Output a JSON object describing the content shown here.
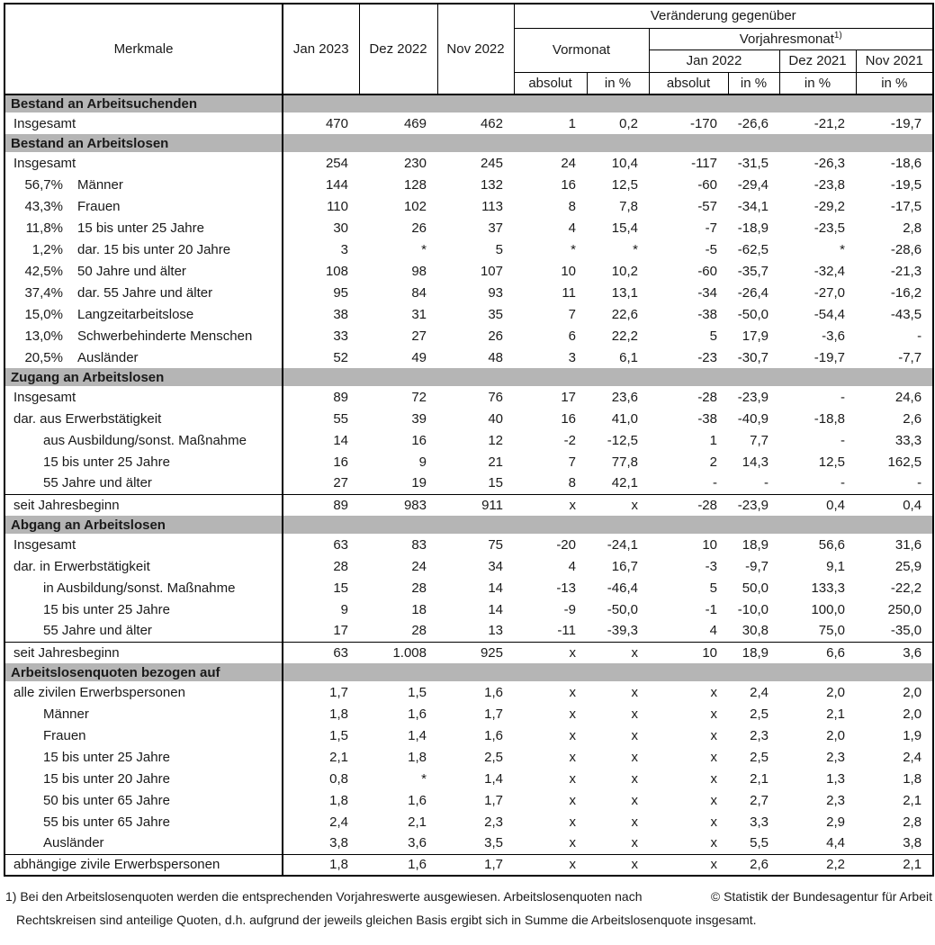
{
  "header": {
    "merkmale": "Merkmale",
    "months": [
      "Jan 2023",
      "Dez 2022",
      "Nov 2022"
    ],
    "change_label": "Veränderung gegenüber",
    "vormonat": "Vormonat",
    "vorjahresmonat": "Vorjahresmonat",
    "note_ref": "1)",
    "vj_months": [
      "Jan 2022",
      "Dez 2021",
      "Nov 2021"
    ],
    "absolut": "absolut",
    "in_pct": "in %"
  },
  "columns": [
    "jan-2023",
    "dez-2022",
    "nov-2022",
    "vormonat-absolut",
    "vormonat-in-pct",
    "jan-2022-absolut",
    "jan-2022-in-pct",
    "dez-2021-in-pct",
    "nov-2021-in-pct"
  ],
  "sections": [
    {
      "title": "Bestand an Arbeitsuchenden",
      "rows": [
        {
          "pct": "",
          "label": "Insgesamt",
          "level": 0,
          "sep": false,
          "values": [
            "470",
            "469",
            "462",
            "1",
            "0,2",
            "-170",
            "-26,6",
            "-21,2",
            "-19,7"
          ]
        }
      ]
    },
    {
      "title": "Bestand an Arbeitslosen",
      "rows": [
        {
          "pct": "",
          "label": "Insgesamt",
          "level": 0,
          "sep": false,
          "values": [
            "254",
            "230",
            "245",
            "24",
            "10,4",
            "-117",
            "-31,5",
            "-26,3",
            "-18,6"
          ]
        },
        {
          "pct": "56,7%",
          "label": "Männer",
          "level": 0,
          "sep": false,
          "values": [
            "144",
            "128",
            "132",
            "16",
            "12,5",
            "-60",
            "-29,4",
            "-23,8",
            "-19,5"
          ]
        },
        {
          "pct": "43,3%",
          "label": "Frauen",
          "level": 0,
          "sep": false,
          "values": [
            "110",
            "102",
            "113",
            "8",
            "7,8",
            "-57",
            "-34,1",
            "-29,2",
            "-17,5"
          ]
        },
        {
          "pct": "11,8%",
          "label": "15 bis unter 25 Jahre",
          "level": 0,
          "sep": false,
          "values": [
            "30",
            "26",
            "37",
            "4",
            "15,4",
            "-7",
            "-18,9",
            "-23,5",
            "2,8"
          ]
        },
        {
          "pct": "1,2%",
          "label": "dar. 15 bis unter 20 Jahre",
          "level": 0,
          "sep": false,
          "values": [
            "3",
            "*",
            "5",
            "*",
            "*",
            "-5",
            "-62,5",
            "*",
            "-28,6"
          ]
        },
        {
          "pct": "42,5%",
          "label": "50 Jahre und älter",
          "level": 0,
          "sep": false,
          "values": [
            "108",
            "98",
            "107",
            "10",
            "10,2",
            "-60",
            "-35,7",
            "-32,4",
            "-21,3"
          ]
        },
        {
          "pct": "37,4%",
          "label": "dar. 55 Jahre und älter",
          "level": 0,
          "sep": false,
          "values": [
            "95",
            "84",
            "93",
            "11",
            "13,1",
            "-34",
            "-26,4",
            "-27,0",
            "-16,2"
          ]
        },
        {
          "pct": "15,0%",
          "label": "Langzeitarbeitslose",
          "level": 0,
          "sep": false,
          "values": [
            "38",
            "31",
            "35",
            "7",
            "22,6",
            "-38",
            "-50,0",
            "-54,4",
            "-43,5"
          ]
        },
        {
          "pct": "13,0%",
          "label": "Schwerbehinderte Menschen",
          "level": 0,
          "sep": false,
          "values": [
            "33",
            "27",
            "26",
            "6",
            "22,2",
            "5",
            "17,9",
            "-3,6",
            "-"
          ]
        },
        {
          "pct": "20,5%",
          "label": "Ausländer",
          "level": 0,
          "sep": false,
          "values": [
            "52",
            "49",
            "48",
            "3",
            "6,1",
            "-23",
            "-30,7",
            "-19,7",
            "-7,7"
          ]
        }
      ]
    },
    {
      "title": "Zugang an Arbeitslosen",
      "rows": [
        {
          "pct": "",
          "label": "Insgesamt",
          "level": 0,
          "sep": false,
          "values": [
            "89",
            "72",
            "76",
            "17",
            "23,6",
            "-28",
            "-23,9",
            "-",
            "24,6"
          ]
        },
        {
          "pct": "",
          "label": "dar. aus Erwerbstätigkeit",
          "level": 0,
          "sep": false,
          "values": [
            "55",
            "39",
            "40",
            "16",
            "41,0",
            "-38",
            "-40,9",
            "-18,8",
            "2,6"
          ]
        },
        {
          "pct": "",
          "label": "aus Ausbildung/sonst. Maßnahme",
          "level": 1,
          "sep": false,
          "values": [
            "14",
            "16",
            "12",
            "-2",
            "-12,5",
            "1",
            "7,7",
            "-",
            "33,3"
          ]
        },
        {
          "pct": "",
          "label": "15 bis unter 25 Jahre",
          "level": 1,
          "sep": false,
          "values": [
            "16",
            "9",
            "21",
            "7",
            "77,8",
            "2",
            "14,3",
            "12,5",
            "162,5"
          ]
        },
        {
          "pct": "",
          "label": "55 Jahre und älter",
          "level": 1,
          "sep": false,
          "values": [
            "27",
            "19",
            "15",
            "8",
            "42,1",
            "-",
            "-",
            "-",
            "-"
          ]
        },
        {
          "pct": "",
          "label": "seit Jahresbeginn",
          "level": 0,
          "sep": true,
          "values": [
            "89",
            "983",
            "911",
            "x",
            "x",
            "-28",
            "-23,9",
            "0,4",
            "0,4"
          ]
        }
      ]
    },
    {
      "title": "Abgang an Arbeitslosen",
      "rows": [
        {
          "pct": "",
          "label": "Insgesamt",
          "level": 0,
          "sep": false,
          "values": [
            "63",
            "83",
            "75",
            "-20",
            "-24,1",
            "10",
            "18,9",
            "56,6",
            "31,6"
          ]
        },
        {
          "pct": "",
          "label": "dar. in Erwerbstätigkeit",
          "level": 0,
          "sep": false,
          "values": [
            "28",
            "24",
            "34",
            "4",
            "16,7",
            "-3",
            "-9,7",
            "9,1",
            "25,9"
          ]
        },
        {
          "pct": "",
          "label": "in Ausbildung/sonst. Maßnahme",
          "level": 1,
          "sep": false,
          "values": [
            "15",
            "28",
            "14",
            "-13",
            "-46,4",
            "5",
            "50,0",
            "133,3",
            "-22,2"
          ]
        },
        {
          "pct": "",
          "label": "15 bis unter 25 Jahre",
          "level": 1,
          "sep": false,
          "values": [
            "9",
            "18",
            "14",
            "-9",
            "-50,0",
            "-1",
            "-10,0",
            "100,0",
            "250,0"
          ]
        },
        {
          "pct": "",
          "label": "55 Jahre und älter",
          "level": 1,
          "sep": false,
          "values": [
            "17",
            "28",
            "13",
            "-11",
            "-39,3",
            "4",
            "30,8",
            "75,0",
            "-35,0"
          ]
        },
        {
          "pct": "",
          "label": "seit Jahresbeginn",
          "level": 0,
          "sep": true,
          "values": [
            "63",
            "1.008",
            "925",
            "x",
            "x",
            "10",
            "18,9",
            "6,6",
            "3,6"
          ]
        }
      ]
    },
    {
      "title": "Arbeitslosenquoten bezogen auf",
      "rows": [
        {
          "pct": "",
          "label": "alle zivilen Erwerbspersonen",
          "level": 0,
          "sep": false,
          "values": [
            "1,7",
            "1,5",
            "1,6",
            "x",
            "x",
            "x",
            "2,4",
            "2,0",
            "2,0"
          ]
        },
        {
          "pct": "",
          "label": "Männer",
          "level": 1,
          "sep": false,
          "values": [
            "1,8",
            "1,6",
            "1,7",
            "x",
            "x",
            "x",
            "2,5",
            "2,1",
            "2,0"
          ]
        },
        {
          "pct": "",
          "label": "Frauen",
          "level": 1,
          "sep": false,
          "values": [
            "1,5",
            "1,4",
            "1,6",
            "x",
            "x",
            "x",
            "2,3",
            "2,0",
            "1,9"
          ]
        },
        {
          "pct": "",
          "label": "15 bis unter 25 Jahre",
          "level": 1,
          "sep": false,
          "values": [
            "2,1",
            "1,8",
            "2,5",
            "x",
            "x",
            "x",
            "2,5",
            "2,3",
            "2,4"
          ]
        },
        {
          "pct": "",
          "label": "15 bis unter 20 Jahre",
          "level": 1,
          "sep": false,
          "values": [
            "0,8",
            "*",
            "1,4",
            "x",
            "x",
            "x",
            "2,1",
            "1,3",
            "1,8"
          ]
        },
        {
          "pct": "",
          "label": "50 bis unter 65 Jahre",
          "level": 1,
          "sep": false,
          "values": [
            "1,8",
            "1,6",
            "1,7",
            "x",
            "x",
            "x",
            "2,7",
            "2,3",
            "2,1"
          ]
        },
        {
          "pct": "",
          "label": "55 bis unter 65 Jahre",
          "level": 1,
          "sep": false,
          "values": [
            "2,4",
            "2,1",
            "2,3",
            "x",
            "x",
            "x",
            "3,3",
            "2,9",
            "2,8"
          ]
        },
        {
          "pct": "",
          "label": "Ausländer",
          "level": 1,
          "sep": false,
          "values": [
            "3,8",
            "3,6",
            "3,5",
            "x",
            "x",
            "x",
            "5,5",
            "4,4",
            "3,8"
          ]
        },
        {
          "pct": "",
          "label": "abhängige zivile Erwerbspersonen",
          "level": 0,
          "sep": true,
          "values": [
            "1,8",
            "1,6",
            "1,7",
            "x",
            "x",
            "x",
            "2,6",
            "2,2",
            "2,1"
          ]
        }
      ]
    }
  ],
  "footer": {
    "note_line1": "1) Bei den Arbeitslosenquoten werden die entsprechenden Vorjahreswerte ausgewiesen. Arbeitslosenquoten nach",
    "note_line2": "Rechtskreisen sind anteilige Quoten, d.h. aufgrund der jeweils gleichen Basis ergibt sich in Summe die Arbeitslosenquote insgesamt.",
    "copyright": "© Statistik der Bundesagentur für Arbeit"
  }
}
